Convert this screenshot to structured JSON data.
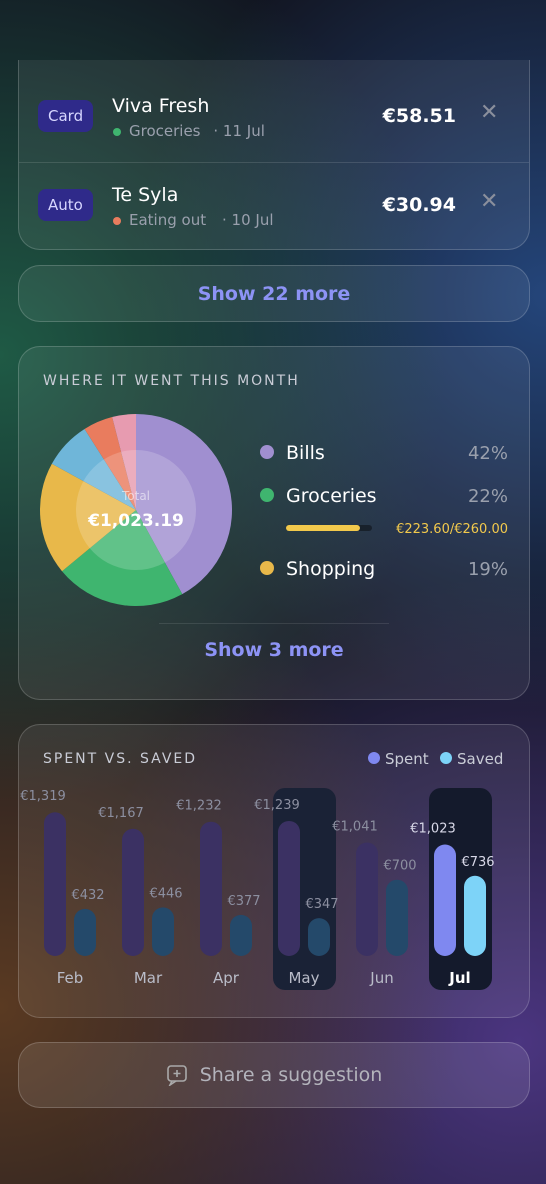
{
  "transactions": [
    {
      "badge": "Card",
      "name": "Viva Fresh",
      "category": "Groceries",
      "category_color": "#3fb56f",
      "date": "11 Jul",
      "amount": "€58.51"
    },
    {
      "badge": "Auto",
      "name": "Te Syla",
      "category": "Eating out",
      "category_color": "#e97c5e",
      "date": "10 Jul",
      "amount": "€30.94"
    }
  ],
  "show_more_transactions": "Show 22 more",
  "breakdown": {
    "title": "WHERE IT WENT THIS MONTH",
    "total_label": "Total",
    "total": "€1,023.19",
    "chart_data": {
      "type": "pie",
      "categories": [
        "Bills",
        "Groceries",
        "Shopping",
        null,
        null,
        null
      ],
      "values": [
        42,
        22,
        19,
        8,
        5,
        4
      ],
      "value_labels": [
        "42%",
        "22%",
        "19%",
        null,
        null,
        null
      ],
      "colors": [
        "#a08fd0",
        "#3fb56f",
        "#e8b84a",
        "#6fb6d9",
        "#e97c5e",
        "#e79bb0"
      ]
    },
    "budget": {
      "spent": 223.6,
      "limit": 260,
      "label": "€223.60/€260.00",
      "color": "#f2c94c"
    },
    "show_more": "Show 3 more"
  },
  "spent_saved": {
    "title": "SPENT VS. SAVED",
    "chart_data": {
      "type": "bar",
      "categories": [
        "Feb",
        "Mar",
        "Apr",
        "May",
        "Jun",
        "Jul"
      ],
      "series": [
        {
          "name": "Spent",
          "color": "#7f88f0",
          "values": [
            1319,
            1167,
            1232,
            1239,
            1041,
            1023
          ],
          "value_labels": [
            "€1,319",
            "€1,167",
            "€1,232",
            "€1,239",
            "€1,041",
            "€1,023"
          ]
        },
        {
          "name": "Saved",
          "color": "#7dd3f8",
          "values": [
            432,
            446,
            377,
            347,
            700,
            736
          ],
          "value_labels": [
            "€432",
            "€446",
            "€377",
            "€347",
            "€700",
            "€736"
          ]
        }
      ]
    }
  },
  "share": "Share a suggestion"
}
